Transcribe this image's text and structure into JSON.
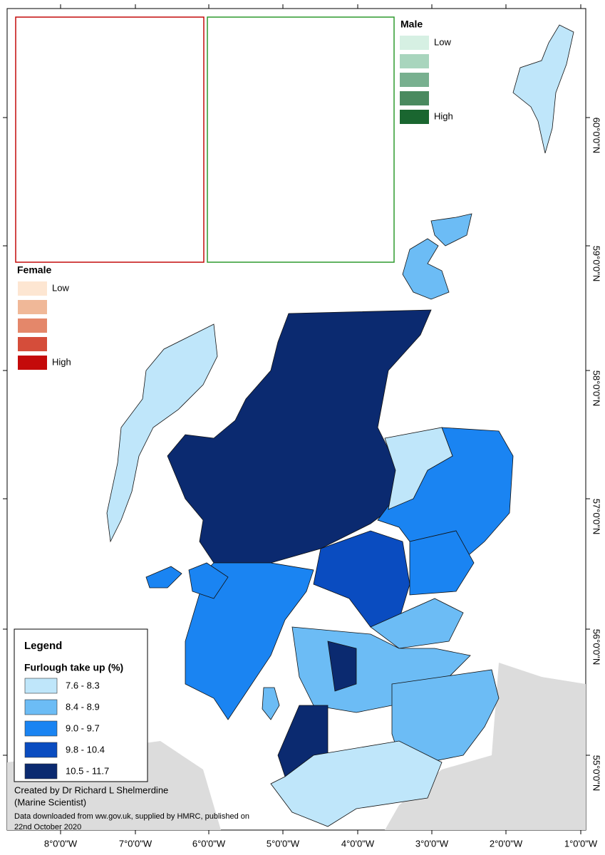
{
  "map": {
    "longitude_labels": [
      "8°0'0\"W",
      "7°0'0\"W",
      "6°0'0\"W",
      "5°0'0\"W",
      "4°0'0\"W",
      "3°0'0\"W",
      "2°0'0\"W",
      "1°0'0\"W"
    ],
    "latitude_labels": [
      "60°0'0\"N",
      "59°0'0\"N",
      "58°0'0\"N",
      "57°0'0\"N",
      "56°0'0\"N",
      "55°0'0\"N"
    ]
  },
  "inset_female": {
    "title": "Female",
    "low": "Low",
    "high": "High",
    "colors": [
      "#fde6d2",
      "#f0b898",
      "#e4876a",
      "#d54d3a",
      "#c40a0a"
    ]
  },
  "inset_male": {
    "title": "Male",
    "low": "Low",
    "high": "High",
    "colors": [
      "#d6f0e3",
      "#a8d5bd",
      "#78b08f",
      "#4a8a5f",
      "#1a6630"
    ]
  },
  "legend": {
    "title": "Legend",
    "subtitle": "Furlough take up (%)",
    "classes": [
      {
        "label": "7.6 - 8.3",
        "color": "#bfe6fa"
      },
      {
        "label": "8.4 - 8.9",
        "color": "#6cbcf5"
      },
      {
        "label": "9.0 - 9.7",
        "color": "#1a84f2"
      },
      {
        "label": "9.8 - 10.4",
        "color": "#0a4cc0"
      },
      {
        "label": "10.5 - 11.7",
        "color": "#0b2a70"
      }
    ]
  },
  "credits": {
    "author": "Created by Dr Richard L Shelmerdine",
    "affiliation": "(Marine Scientist)",
    "source": "Data downloaded from ww.gov.uk, supplied by HMRC, published on",
    "date": "22nd October 2020"
  }
}
